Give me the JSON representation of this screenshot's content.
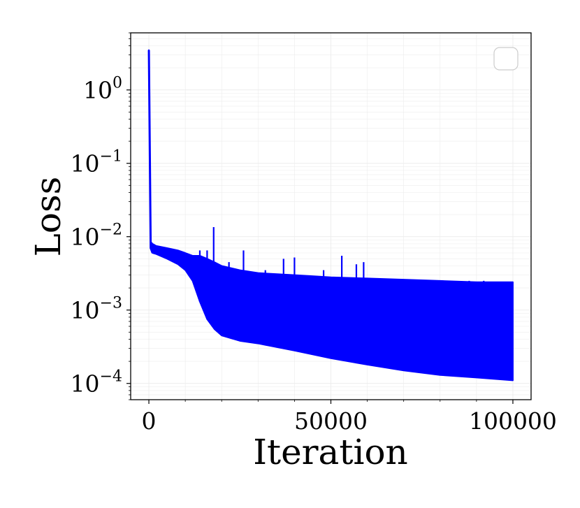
{
  "chart_data": {
    "type": "line",
    "xlabel": "Iteration",
    "ylabel": "Loss",
    "x_scale": "linear",
    "y_scale": "log",
    "xlim": [
      -5000,
      105000
    ],
    "ylim": [
      6e-05,
      6
    ],
    "x_ticks": [
      0,
      50000,
      100000
    ],
    "x_tick_labels": [
      "0",
      "50000",
      "100000"
    ],
    "y_ticks": [
      0.0001,
      0.001,
      0.01,
      0.1,
      1
    ],
    "y_tick_labels": [
      {
        "base": "10",
        "exp": "−4"
      },
      {
        "base": "10",
        "exp": "−3"
      },
      {
        "base": "10",
        "exp": "−2"
      },
      {
        "base": "10",
        "exp": "−1"
      },
      {
        "base": "10",
        "exp": "0"
      }
    ],
    "grid": true,
    "legend": {
      "placement": "top-right",
      "entries": []
    },
    "series": [
      {
        "color": "#0000ff",
        "x": [
          0,
          500,
          1000,
          2000,
          5000,
          8000,
          10000,
          12000,
          14000,
          16000,
          18000,
          20000,
          25000,
          30000,
          40000,
          50000,
          60000,
          70000,
          80000,
          90000,
          100000
        ],
        "lower": [
          3.5,
          0.007,
          0.006,
          0.0058,
          0.005,
          0.0042,
          0.0035,
          0.0025,
          0.0013,
          0.00075,
          0.00055,
          0.00045,
          0.00038,
          0.00035,
          0.00028,
          0.00022,
          0.00018,
          0.00015,
          0.00013,
          0.00012,
          0.00011
        ],
        "upper": [
          3.5,
          0.0085,
          0.008,
          0.0075,
          0.007,
          0.0065,
          0.006,
          0.0055,
          0.0055,
          0.005,
          0.0045,
          0.004,
          0.0035,
          0.0032,
          0.003,
          0.0028,
          0.0027,
          0.0026,
          0.0025,
          0.0024,
          0.0024
        ],
        "spikes": [
          {
            "x": 12000,
            "y": 0.0055
          },
          {
            "x": 14000,
            "y": 0.0065
          },
          {
            "x": 16000,
            "y": 0.0065
          },
          {
            "x": 17800,
            "y": 0.0135
          },
          {
            "x": 22000,
            "y": 0.0045
          },
          {
            "x": 26000,
            "y": 0.0065
          },
          {
            "x": 29000,
            "y": 0.0025
          },
          {
            "x": 32000,
            "y": 0.0035
          },
          {
            "x": 37000,
            "y": 0.005
          },
          {
            "x": 40000,
            "y": 0.0052
          },
          {
            "x": 45000,
            "y": 0.0028
          },
          {
            "x": 48000,
            "y": 0.0035
          },
          {
            "x": 53000,
            "y": 0.0055
          },
          {
            "x": 57000,
            "y": 0.0042
          },
          {
            "x": 59000,
            "y": 0.0045
          },
          {
            "x": 63000,
            "y": 0.002
          },
          {
            "x": 69000,
            "y": 0.0025
          },
          {
            "x": 75000,
            "y": 0.0022
          },
          {
            "x": 81000,
            "y": 0.0023
          },
          {
            "x": 88000,
            "y": 0.0025
          },
          {
            "x": 92000,
            "y": 0.0025
          },
          {
            "x": 96000,
            "y": 0.0024
          },
          {
            "x": 99500,
            "y": 0.0024
          }
        ]
      }
    ]
  }
}
